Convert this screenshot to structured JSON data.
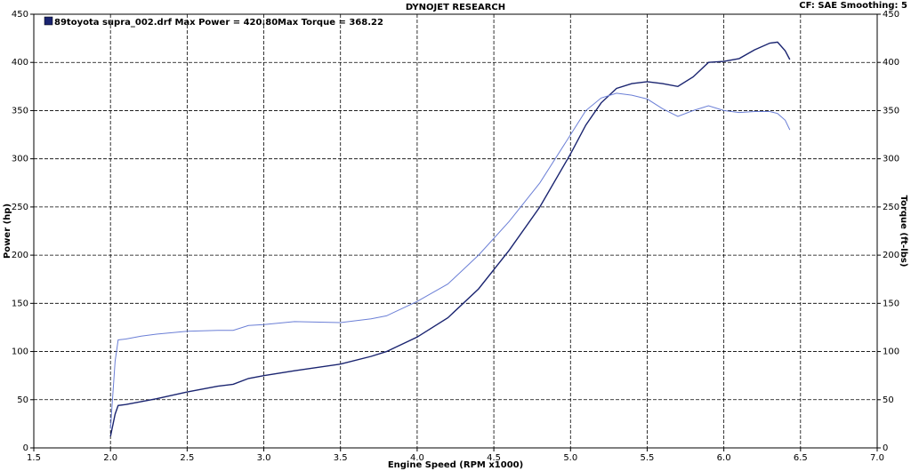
{
  "chart_data": {
    "type": "line",
    "title": "DYNOJET RESEARCH",
    "subtitle": "CF: SAE  Smoothing: 5",
    "annotations": [
      "89toyota supra_002.drf Max Power = 420.80",
      "Max Torque = 368.22"
    ],
    "x_label": "Engine Speed (RPM x1000)",
    "y_label": "Power (hp)",
    "y2_label": "Torque (ft-lbs)",
    "x": [
      2.0,
      2.03,
      2.05,
      2.1,
      2.2,
      2.3,
      2.5,
      2.7,
      2.8,
      2.9,
      3.0,
      3.2,
      3.5,
      3.7,
      3.8,
      4.0,
      4.2,
      4.4,
      4.6,
      4.8,
      5.0,
      5.1,
      5.2,
      5.3,
      5.4,
      5.5,
      5.6,
      5.7,
      5.8,
      5.9,
      6.0,
      6.1,
      6.2,
      6.3,
      6.35,
      6.4,
      6.43
    ],
    "series": [
      {
        "color": "#1a2470",
        "axis": "y",
        "values": [
          12,
          35,
          44,
          45,
          48,
          51,
          58,
          64,
          66,
          72,
          75,
          80,
          87,
          95,
          100,
          115,
          135,
          165,
          205,
          250,
          305,
          335,
          358,
          373,
          378,
          380,
          378,
          375,
          385,
          400,
          401,
          404,
          413,
          420,
          421,
          412,
          403
        ]
      },
      {
        "color": "#6b7fd6",
        "axis": "y2",
        "values": [
          20,
          90,
          112,
          113,
          116,
          118,
          121,
          122,
          122,
          127,
          128,
          131,
          130,
          134,
          137,
          152,
          170,
          200,
          235,
          275,
          325,
          350,
          363,
          368,
          366,
          362,
          352,
          344,
          350,
          355,
          350,
          348,
          349,
          349,
          347,
          340,
          330
        ]
      }
    ],
    "xlim": [
      1.5,
      7.0
    ],
    "xticks": [
      1.5,
      {
        "value": 2,
        "label": "2.0"
      },
      2.5,
      {
        "value": 3,
        "label": "3.0"
      },
      3.5,
      {
        "value": 4,
        "label": "4.0"
      },
      4.5,
      {
        "value": 5,
        "label": "5.0"
      },
      5.5,
      {
        "value": 6,
        "label": "6.0"
      },
      6.5,
      {
        "value": 7,
        "label": "7.0"
      }
    ],
    "ylim": [
      0,
      450
    ],
    "yticks": [
      0,
      50,
      100,
      150,
      200,
      250,
      300,
      350,
      400,
      450
    ],
    "y2lim": [
      0,
      450
    ],
    "y2ticks": [
      0,
      50,
      100,
      150,
      200,
      250,
      300,
      350,
      400,
      450
    ],
    "grid": true
  }
}
